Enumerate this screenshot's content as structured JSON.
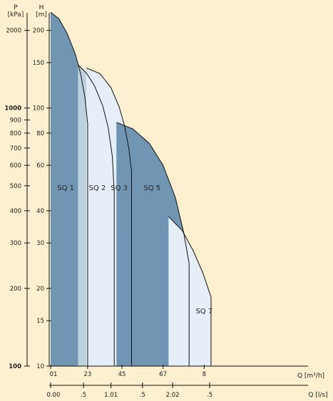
{
  "chart_data": {
    "type": "area",
    "title": "",
    "left_axis_p": {
      "unit_top": "P",
      "unit_bottom": "[kPa]",
      "ticks": [
        {
          "label": "2000",
          "value": 2000,
          "bold": false
        },
        {
          "label": "1000",
          "value": 1000,
          "bold": true
        },
        {
          "label": "900",
          "value": 900,
          "bold": false
        },
        {
          "label": "800",
          "value": 800,
          "bold": false
        },
        {
          "label": "700",
          "value": 700,
          "bold": false
        },
        {
          "label": "600",
          "value": 600,
          "bold": false
        },
        {
          "label": "500",
          "value": 500,
          "bold": false
        },
        {
          "label": "400",
          "value": 400,
          "bold": false
        },
        {
          "label": "300",
          "value": 300,
          "bold": false
        },
        {
          "label": "200",
          "value": 200,
          "bold": false
        },
        {
          "label": "100",
          "value": 100,
          "bold": true
        }
      ]
    },
    "left_axis_h": {
      "unit_top": "H",
      "unit_bottom": "[m]",
      "scale": "log",
      "ylim": [
        10,
        240
      ],
      "ticks": [
        {
          "label": "200",
          "value": 200
        },
        {
          "label": "150",
          "value": 150
        },
        {
          "label": "100",
          "value": 100
        },
        {
          "label": "80",
          "value": 80
        },
        {
          "label": "60",
          "value": 60
        },
        {
          "label": "40",
          "value": 40
        },
        {
          "label": "30",
          "value": 30
        },
        {
          "label": "20",
          "value": 20
        },
        {
          "label": "15",
          "value": 15
        },
        {
          "label": "10",
          "value": 10
        }
      ]
    },
    "x_axis_q_m3h": {
      "unit": "Q [m³/h]",
      "xlim": [
        0,
        9.2
      ],
      "ticks": [
        {
          "label": "01",
          "value": 0
        },
        {
          "label": "23",
          "value": 1.35
        },
        {
          "label": "45",
          "value": 2.6
        },
        {
          "label": "67",
          "value": 4.1
        },
        {
          "label": "8",
          "value": 5.6
        }
      ]
    },
    "x_axis_q_ls": {
      "unit": "Q [l/s]",
      "ticks": [
        {
          "label": "0.00",
          "value": 0
        },
        {
          "label": ".5",
          "value": 1.2
        },
        {
          "label": "1.01",
          "value": 2.2
        },
        {
          "label": ".5",
          "value": 3.35
        },
        {
          "label": "2.02",
          "value": 4.45
        },
        {
          "label": ".5",
          "value": 5.8
        }
      ]
    },
    "series": [
      {
        "name": "SQ 1",
        "color": "#7196b3",
        "curve": [
          [
            0,
            235
          ],
          [
            0.3,
            222
          ],
          [
            0.6,
            195
          ],
          [
            0.9,
            162
          ],
          [
            1.1,
            135
          ],
          [
            1.25,
            110
          ],
          [
            1.35,
            87
          ]
        ],
        "q_max": 1.35,
        "label_at": [
          0.55,
          48
        ]
      },
      {
        "name": "SQ 2",
        "color": "#bdd2df",
        "curve": [
          [
            1.0,
            147
          ],
          [
            1.3,
            137
          ],
          [
            1.6,
            122
          ],
          [
            1.9,
            102
          ],
          [
            2.1,
            84
          ],
          [
            2.25,
            65
          ],
          [
            2.32,
            47
          ]
        ],
        "q_max": 2.32,
        "label_at": [
          1.7,
          48
        ]
      },
      {
        "name": "SQ 3",
        "color": "#e6eef7",
        "curve": [
          [
            1.3,
            143
          ],
          [
            1.8,
            136
          ],
          [
            2.2,
            120
          ],
          [
            2.5,
            101
          ],
          [
            2.7,
            85
          ],
          [
            2.85,
            70
          ],
          [
            2.95,
            57
          ]
        ],
        "q_max": 2.95,
        "label_at": [
          2.5,
          48
        ]
      },
      {
        "name": "SQ 5",
        "color": "#7196b3",
        "curve": [
          [
            2.4,
            88
          ],
          [
            3.0,
            83
          ],
          [
            3.6,
            73
          ],
          [
            4.1,
            60
          ],
          [
            4.55,
            45
          ],
          [
            4.85,
            33
          ],
          [
            5.05,
            25
          ]
        ],
        "q_max": 5.05,
        "label_at": [
          3.7,
          48
        ]
      },
      {
        "name": "SQ 7",
        "color": "#e6eef7",
        "curve": [
          [
            4.3,
            38
          ],
          [
            4.8,
            33.5
          ],
          [
            5.2,
            28
          ],
          [
            5.55,
            23
          ],
          [
            5.85,
            18.5
          ]
        ],
        "q_max": 5.85,
        "label_at": [
          5.6,
          16
        ]
      }
    ]
  }
}
